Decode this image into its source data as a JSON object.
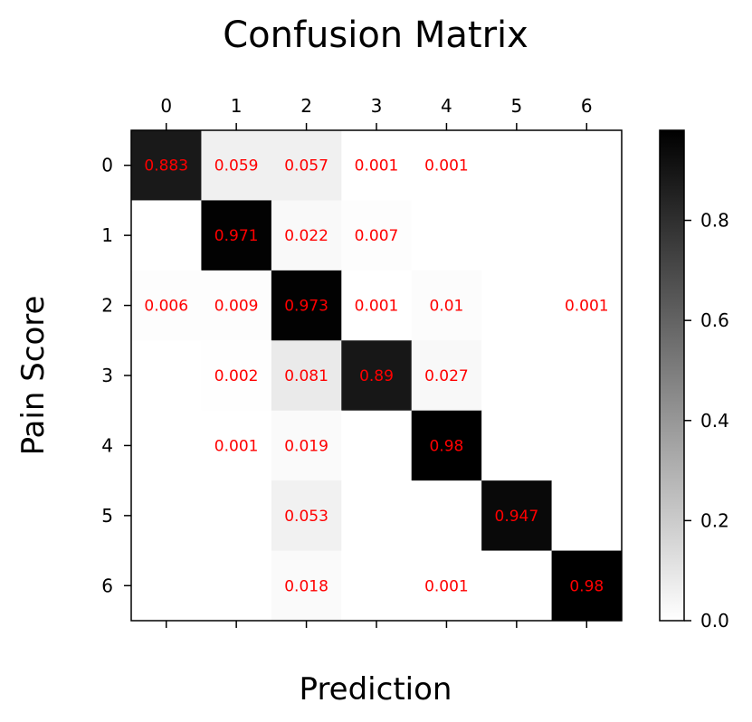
{
  "chart_data": {
    "type": "heatmap",
    "title": "Confusion Matrix",
    "xlabel": "Prediction",
    "ylabel": "Pain Score",
    "x_categories": [
      "0",
      "1",
      "2",
      "3",
      "4",
      "5",
      "6"
    ],
    "y_categories": [
      "0",
      "1",
      "2",
      "3",
      "4",
      "5",
      "6"
    ],
    "x_axis_position": "top",
    "cells": [
      [
        0.883,
        0.059,
        0.057,
        0.001,
        0.001,
        null,
        null
      ],
      [
        null,
        0.971,
        0.022,
        0.007,
        null,
        null,
        null
      ],
      [
        0.006,
        0.009,
        0.973,
        0.001,
        0.01,
        null,
        0.001
      ],
      [
        null,
        0.002,
        0.081,
        0.89,
        0.027,
        null,
        null
      ],
      [
        null,
        0.001,
        0.019,
        null,
        0.98,
        null,
        null
      ],
      [
        null,
        null,
        0.053,
        null,
        null,
        0.947,
        null
      ],
      [
        null,
        null,
        0.018,
        null,
        0.001,
        null,
        0.98
      ]
    ],
    "cell_text_color": "#ff0000",
    "colormap": "Greys",
    "color_range": [
      0.0,
      0.98
    ],
    "colorbar": {
      "ticks": [
        0.0,
        0.2,
        0.4,
        0.6,
        0.8
      ],
      "tick_labels": [
        "0.0",
        "0.2",
        "0.4",
        "0.6",
        "0.8"
      ],
      "position": "right"
    },
    "grid": false
  }
}
